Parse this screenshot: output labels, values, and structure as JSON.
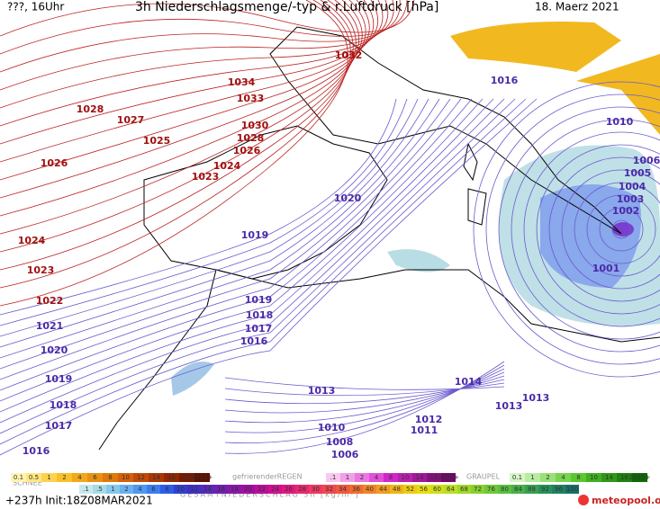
{
  "header": {
    "left": "???, 16Uhr",
    "title": "3h Niederschlagsmenge/-typ & r.Luftdruck [hPa]",
    "date": "18. Maerz 2021"
  },
  "isobars_high": [
    1032,
    1034,
    1033,
    1028,
    1027,
    1030,
    1028,
    1025,
    1026,
    1024,
    1026,
    1023,
    1024,
    1023,
    1022
  ],
  "isobars_low": [
    1016,
    1010,
    1006,
    1005,
    1004,
    1003,
    1002,
    1020,
    1019,
    1001,
    1019,
    1018,
    1017,
    1016,
    1021,
    1020,
    1019,
    1018,
    1017,
    1016,
    1013,
    1014,
    1013,
    1013,
    1012,
    1011,
    1010,
    1008,
    1006
  ],
  "legend": {
    "snow_label": "SCHNEE",
    "snow_scale": [
      "0.1",
      "0.5",
      "1",
      "2",
      "4",
      "6",
      "8",
      "10",
      "12",
      "14",
      "16",
      "18",
      "2025+"
    ],
    "freezing_label": "gefrierenderREGEN",
    "freezing_scale": [
      ".1",
      "1",
      "2",
      "4",
      "8",
      "10",
      "14",
      "16",
      "2025+"
    ],
    "graupel_label": "GRAUPEL",
    "graupel_scale": [
      "0.1",
      "1",
      "2",
      "4",
      "8",
      "10",
      "14",
      "16",
      "2025+"
    ],
    "total_label": "GESAMTNIEDERSCHLAG 3h [kg/m²]",
    "total_scale": [
      ".1",
      ".5",
      "1",
      "2",
      "4",
      "6",
      "8",
      "10",
      "12",
      "14",
      "16",
      "18",
      "20",
      "22",
      "24",
      "26",
      "28",
      "30",
      "32",
      "34",
      "36",
      "40",
      "44",
      "48",
      "52",
      "56",
      "60",
      "64",
      "68",
      "72",
      "76",
      "80",
      "84",
      "88",
      "92",
      "96",
      "100"
    ]
  },
  "footer": {
    "run": "+237h Init:18Z08MAR2021",
    "brand": "meteopool.org"
  }
}
